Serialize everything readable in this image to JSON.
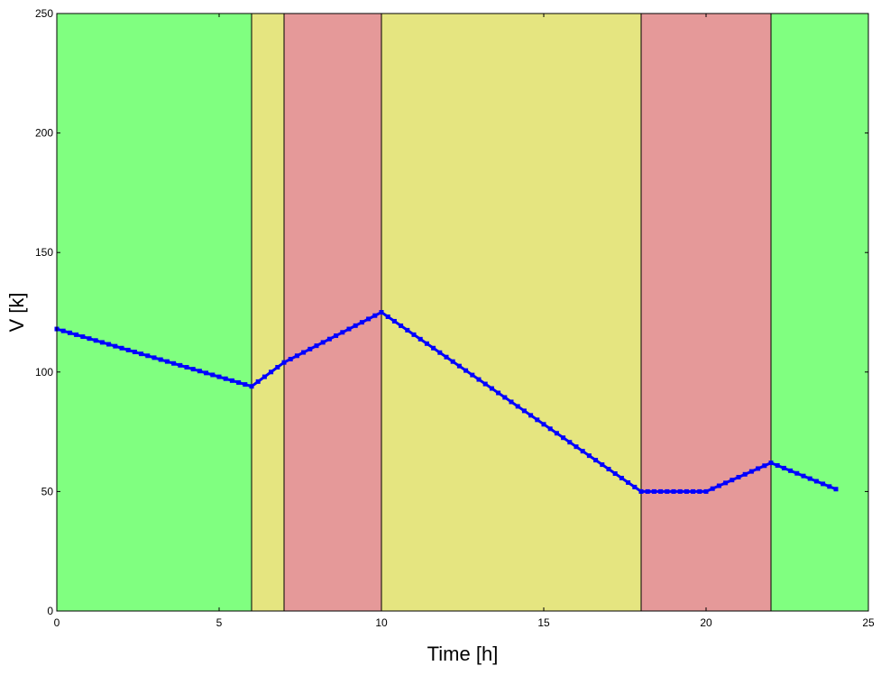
{
  "chart_data": {
    "type": "line",
    "title": "",
    "xlabel": "Time [h]",
    "ylabel": "V [k]",
    "xlim": [
      0,
      25
    ],
    "ylim": [
      0,
      250
    ],
    "xticks": [
      "0",
      "5",
      "10",
      "15",
      "20",
      "25"
    ],
    "yticks": [
      "0",
      "50",
      "100",
      "150",
      "200",
      "250"
    ],
    "grid": false,
    "legend": "none",
    "background_bands": [
      {
        "x0": 0,
        "x1": 6,
        "color": "#80ff80"
      },
      {
        "x0": 6,
        "x1": 7,
        "color": "#e5e580"
      },
      {
        "x0": 7,
        "x1": 10,
        "color": "#e59999"
      },
      {
        "x0": 10,
        "x1": 18,
        "color": "#e5e580"
      },
      {
        "x0": 18,
        "x1": 22,
        "color": "#e59999"
      },
      {
        "x0": 22,
        "x1": 25,
        "color": "#80ff80"
      }
    ],
    "series": [
      {
        "color": "#0000ff",
        "marker": "square",
        "x": [
          0,
          6,
          7,
          10,
          18,
          20,
          22,
          24
        ],
        "y": [
          118,
          94,
          104,
          125,
          50,
          50,
          62,
          51
        ]
      }
    ]
  }
}
